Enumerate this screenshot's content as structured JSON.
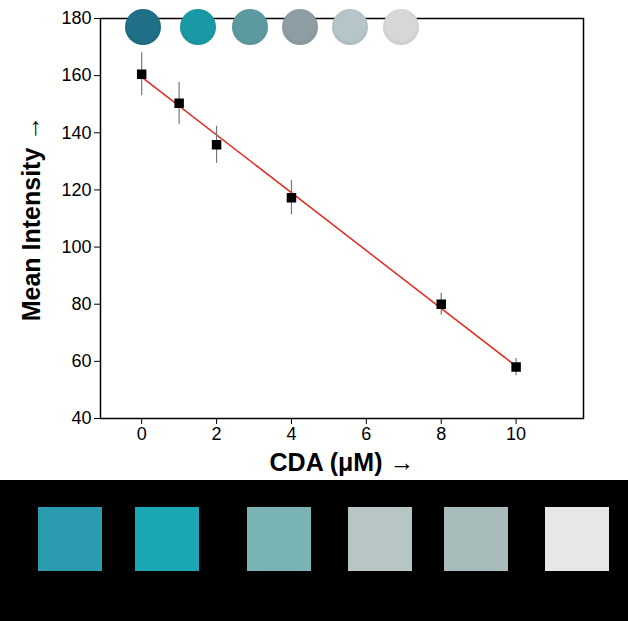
{
  "chart_data": {
    "type": "scatter",
    "x_label": "CDA (μM)",
    "y_label": "Mean Intensity",
    "x": [
      0,
      1,
      2,
      4,
      8,
      10
    ],
    "values": [
      160.5,
      150.3,
      135.8,
      117.3,
      80.0,
      58.0
    ],
    "error": [
      7.5,
      7.3,
      6.5,
      6.0,
      3.8,
      3.0
    ],
    "color": "#000000",
    "marker": "square",
    "fit": {
      "x": [
        0,
        10
      ],
      "values": [
        159.5,
        58.3
      ],
      "color": "#e8281e",
      "line_style": "solid"
    },
    "xlim": [
      -1.1,
      11.8
    ],
    "xticks": [
      0,
      2,
      4,
      6,
      8,
      10
    ],
    "ylim": [
      40,
      180
    ],
    "yticks": [
      40,
      60,
      80,
      100,
      120,
      140,
      160,
      180
    ]
  }
}
